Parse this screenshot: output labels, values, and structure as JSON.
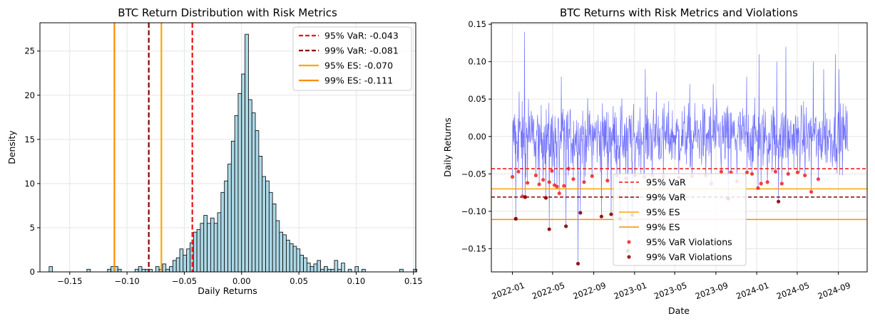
{
  "chart_data": [
    {
      "type": "bar",
      "title": "BTC Return Distribution with Risk Metrics",
      "xlabel": "Daily Returns",
      "ylabel": "Density",
      "xlim": [
        -0.176,
        0.152
      ],
      "ylim": [
        0,
        28.2
      ],
      "xticks": [
        -0.15,
        -0.1,
        -0.05,
        0.0,
        0.05,
        0.1,
        0.15
      ],
      "xtick_labels": [
        "−0.15",
        "−0.10",
        "−0.05",
        "0.00",
        "0.05",
        "0.10",
        "0.15"
      ],
      "yticks": [
        0,
        5,
        10,
        15,
        20,
        25
      ],
      "ytick_labels": [
        "0",
        "5",
        "10",
        "15",
        "20",
        "25"
      ],
      "grid": true,
      "legend_position": "top-right",
      "histogram": {
        "bin_start": -0.168,
        "bin_width": 0.003,
        "densities": [
          0.6,
          0,
          0,
          0,
          0,
          0,
          0,
          0,
          0,
          0,
          0,
          0.3,
          0,
          0,
          0,
          0,
          0,
          0.3,
          0.6,
          0.6,
          0.3,
          0,
          0,
          0,
          0,
          0.3,
          0.6,
          0.3,
          0.3,
          0.3,
          0,
          0.6,
          0.3,
          0.9,
          0.3,
          0.6,
          1.3,
          1.6,
          2.6,
          1.9,
          2.6,
          3.3,
          4.5,
          4.8,
          5.5,
          6.4,
          5.5,
          6.1,
          5.5,
          6.7,
          9.0,
          10.3,
          12.2,
          14.8,
          17.7,
          20.2,
          22.4,
          26.9,
          19.5,
          18.0,
          16.0,
          13.1,
          10.8,
          10.3,
          9.0,
          7.7,
          5.8,
          4.5,
          4.2,
          3.6,
          3.2,
          2.9,
          2.6,
          1.9,
          1.6,
          1.0,
          0.6,
          0.9,
          1.3,
          0.3,
          0.6,
          0.3,
          0.3,
          1.3,
          0.3,
          1.0,
          0,
          0.3,
          0,
          0.6,
          0,
          0.3,
          0,
          0,
          0,
          0,
          0,
          0,
          0,
          0,
          0,
          0,
          0.3,
          0,
          0,
          0,
          0.3
        ]
      },
      "reference_lines": [
        {
          "name": "var95",
          "label": "95% VaR: -0.043",
          "value": -0.043,
          "color": "#ee1111",
          "dash": true
        },
        {
          "name": "var99",
          "label": "99% VaR: -0.081",
          "value": -0.081,
          "color": "#8b0000",
          "dash": true
        },
        {
          "name": "es95",
          "label": "95% ES: -0.070",
          "value": -0.07,
          "color": "#ffa500",
          "dash": false
        },
        {
          "name": "es99",
          "label": "99% ES: -0.111",
          "value": -0.111,
          "color": "#ff8c00",
          "dash": false
        }
      ],
      "colors": {
        "bar_fill": "#add8e6",
        "bar_edge": "#000000"
      }
    },
    {
      "type": "line",
      "title": "BTC Returns with Risk Metrics and Violations",
      "xlabel": "Date",
      "ylabel": "Daily Returns",
      "xlim_days": [
        -63,
        1060
      ],
      "ylim": [
        -0.181,
        0.152
      ],
      "xticks_days": [
        0,
        120,
        243,
        365,
        485,
        608,
        730,
        851,
        974
      ],
      "xtick_labels": [
        "2022-01",
        "2022-05",
        "2022-09",
        "2023-01",
        "2023-05",
        "2023-09",
        "2024-01",
        "2024-05",
        "2024-09"
      ],
      "yticks": [
        -0.15,
        -0.1,
        -0.05,
        0.0,
        0.05,
        0.1,
        0.15
      ],
      "ytick_labels": [
        "−0.15",
        "−0.10",
        "−0.05",
        "0.00",
        "0.05",
        "0.10",
        "0.15"
      ],
      "grid": true,
      "legend_position": "lower-center",
      "series": {
        "name": "Daily returns",
        "start_day": 0,
        "end_day": 1004,
        "color": "#0000ff",
        "notable_points": [
          {
            "day": 7,
            "value": 0.03
          },
          {
            "day": 20,
            "value": 0.06
          },
          {
            "day": 36,
            "value": 0.14
          },
          {
            "day": 48,
            "value": 0.05
          },
          {
            "day": 100,
            "value": 0.09
          },
          {
            "day": 146,
            "value": 0.08
          },
          {
            "day": 160,
            "value": -0.12
          },
          {
            "day": 196,
            "value": -0.17
          },
          {
            "day": 203,
            "value": -0.1
          },
          {
            "day": 266,
            "value": -0.09
          },
          {
            "day": 321,
            "value": -0.11
          },
          {
            "day": 345,
            "value": -0.153
          },
          {
            "day": 358,
            "value": -0.105
          },
          {
            "day": 397,
            "value": 0.09
          },
          {
            "day": 430,
            "value": 0.06
          },
          {
            "day": 530,
            "value": 0.07
          },
          {
            "day": 600,
            "value": 0.07
          },
          {
            "day": 700,
            "value": 0.08
          },
          {
            "day": 737,
            "value": 0.11
          },
          {
            "day": 790,
            "value": 0.1
          },
          {
            "day": 795,
            "value": -0.087
          },
          {
            "day": 817,
            "value": 0.12
          },
          {
            "day": 899,
            "value": 0.1
          },
          {
            "day": 930,
            "value": 0.09
          },
          {
            "day": 965,
            "value": 0.11
          },
          {
            "day": 976,
            "value": 0.09
          }
        ]
      },
      "reference_lines": [
        {
          "name": "var95",
          "label": "95% VaR",
          "value": -0.043,
          "color": "#ee1111",
          "dash": true
        },
        {
          "name": "var99",
          "label": "99% VaR",
          "value": -0.081,
          "color": "#8b0000",
          "dash": true
        },
        {
          "name": "es95",
          "label": "95% ES",
          "value": -0.07,
          "color": "#ffa500",
          "dash": false
        },
        {
          "name": "es99",
          "label": "99% ES",
          "value": -0.111,
          "color": "#ff8c00",
          "dash": false
        }
      ],
      "violations_95": {
        "label": "95% VaR Violations",
        "color": "#ee2222",
        "points": [
          [
            0,
            -0.054
          ],
          [
            10,
            -0.11
          ],
          [
            18,
            -0.047
          ],
          [
            30,
            -0.08
          ],
          [
            38,
            -0.081
          ],
          [
            45,
            -0.062
          ],
          [
            70,
            -0.052
          ],
          [
            80,
            -0.064
          ],
          [
            92,
            -0.058
          ],
          [
            100,
            -0.082
          ],
          [
            110,
            -0.061
          ],
          [
            118,
            -0.046
          ],
          [
            126,
            -0.065
          ],
          [
            133,
            -0.067
          ],
          [
            140,
            -0.076
          ],
          [
            154,
            -0.066
          ],
          [
            168,
            -0.043
          ],
          [
            182,
            -0.057
          ],
          [
            214,
            -0.061
          ],
          [
            238,
            -0.053
          ],
          [
            284,
            -0.059
          ],
          [
            312,
            -0.052
          ],
          [
            339,
            -0.056
          ],
          [
            366,
            -0.052
          ],
          [
            394,
            -0.054
          ],
          [
            418,
            -0.052
          ],
          [
            451,
            -0.053
          ],
          [
            497,
            -0.055
          ],
          [
            537,
            -0.053
          ],
          [
            578,
            -0.052
          ],
          [
            594,
            -0.063
          ],
          [
            624,
            -0.047
          ],
          [
            653,
            -0.048
          ],
          [
            671,
            -0.06
          ],
          [
            701,
            -0.048
          ],
          [
            716,
            -0.05
          ],
          [
            734,
            -0.069
          ],
          [
            743,
            -0.063
          ],
          [
            762,
            -0.061
          ],
          [
            786,
            -0.047
          ],
          [
            805,
            -0.063
          ],
          [
            824,
            -0.05
          ],
          [
            852,
            -0.048
          ],
          [
            874,
            -0.052
          ],
          [
            893,
            -0.074
          ],
          [
            914,
            -0.057
          ]
        ]
      },
      "violations_99": {
        "label": "99% VaR Violations",
        "color": "#8b0000",
        "points": [
          [
            10,
            -0.11
          ],
          [
            38,
            -0.081
          ],
          [
            100,
            -0.082
          ],
          [
            110,
            -0.124
          ],
          [
            160,
            -0.12
          ],
          [
            196,
            -0.17
          ],
          [
            203,
            -0.102
          ],
          [
            266,
            -0.107
          ],
          [
            295,
            -0.104
          ],
          [
            321,
            -0.11
          ],
          [
            345,
            -0.153
          ],
          [
            358,
            -0.105
          ],
          [
            645,
            -0.083
          ],
          [
            795,
            -0.087
          ]
        ]
      }
    }
  ],
  "legend_left": [
    "95% VaR: -0.043",
    "99% VaR: -0.081",
    "95% ES: -0.070",
    "99% ES: -0.111"
  ],
  "legend_right": [
    "95% VaR",
    "99% VaR",
    "95% ES",
    "99% ES",
    "95% VaR Violations",
    "99% VaR Violations"
  ]
}
